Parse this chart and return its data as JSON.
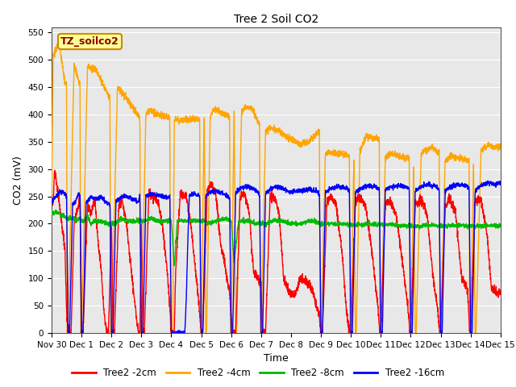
{
  "title": "Tree 2 Soil CO2",
  "ylabel": "CO2 (mV)",
  "xlabel": "Time",
  "ylim": [
    0,
    560
  ],
  "xlim": [
    0,
    15
  ],
  "xtick_labels": [
    "Nov 30",
    "Dec 1",
    "Dec 2",
    "Dec 3",
    "Dec 4",
    "Dec 5",
    "Dec 6",
    "Dec 7",
    "Dec 8",
    "Dec 9",
    "Dec 10",
    "Dec 11",
    "Dec 12",
    "Dec 13",
    "Dec 14",
    "Dec 15"
  ],
  "xtick_positions": [
    0,
    1,
    2,
    3,
    4,
    5,
    6,
    7,
    8,
    9,
    10,
    11,
    12,
    13,
    14,
    15
  ],
  "colors": {
    "red": "#ff0000",
    "orange": "#ffa500",
    "green": "#00bb00",
    "blue": "#0000ff"
  },
  "legend_labels": [
    "Tree2 -2cm",
    "Tree2 -4cm",
    "Tree2 -8cm",
    "Tree2 -16cm"
  ],
  "legend_colors": [
    "#ff0000",
    "#ffa500",
    "#00bb00",
    "#0000ff"
  ],
  "box_label": "TZ_soilco2",
  "box_color": "#ffff99",
  "box_border": "#cc8800",
  "background_color": "#e8e8e8",
  "grid_color": "#ffffff",
  "title_fontsize": 10,
  "axis_label_fontsize": 9,
  "tick_fontsize": 7.5,
  "legend_fontsize": 8.5
}
